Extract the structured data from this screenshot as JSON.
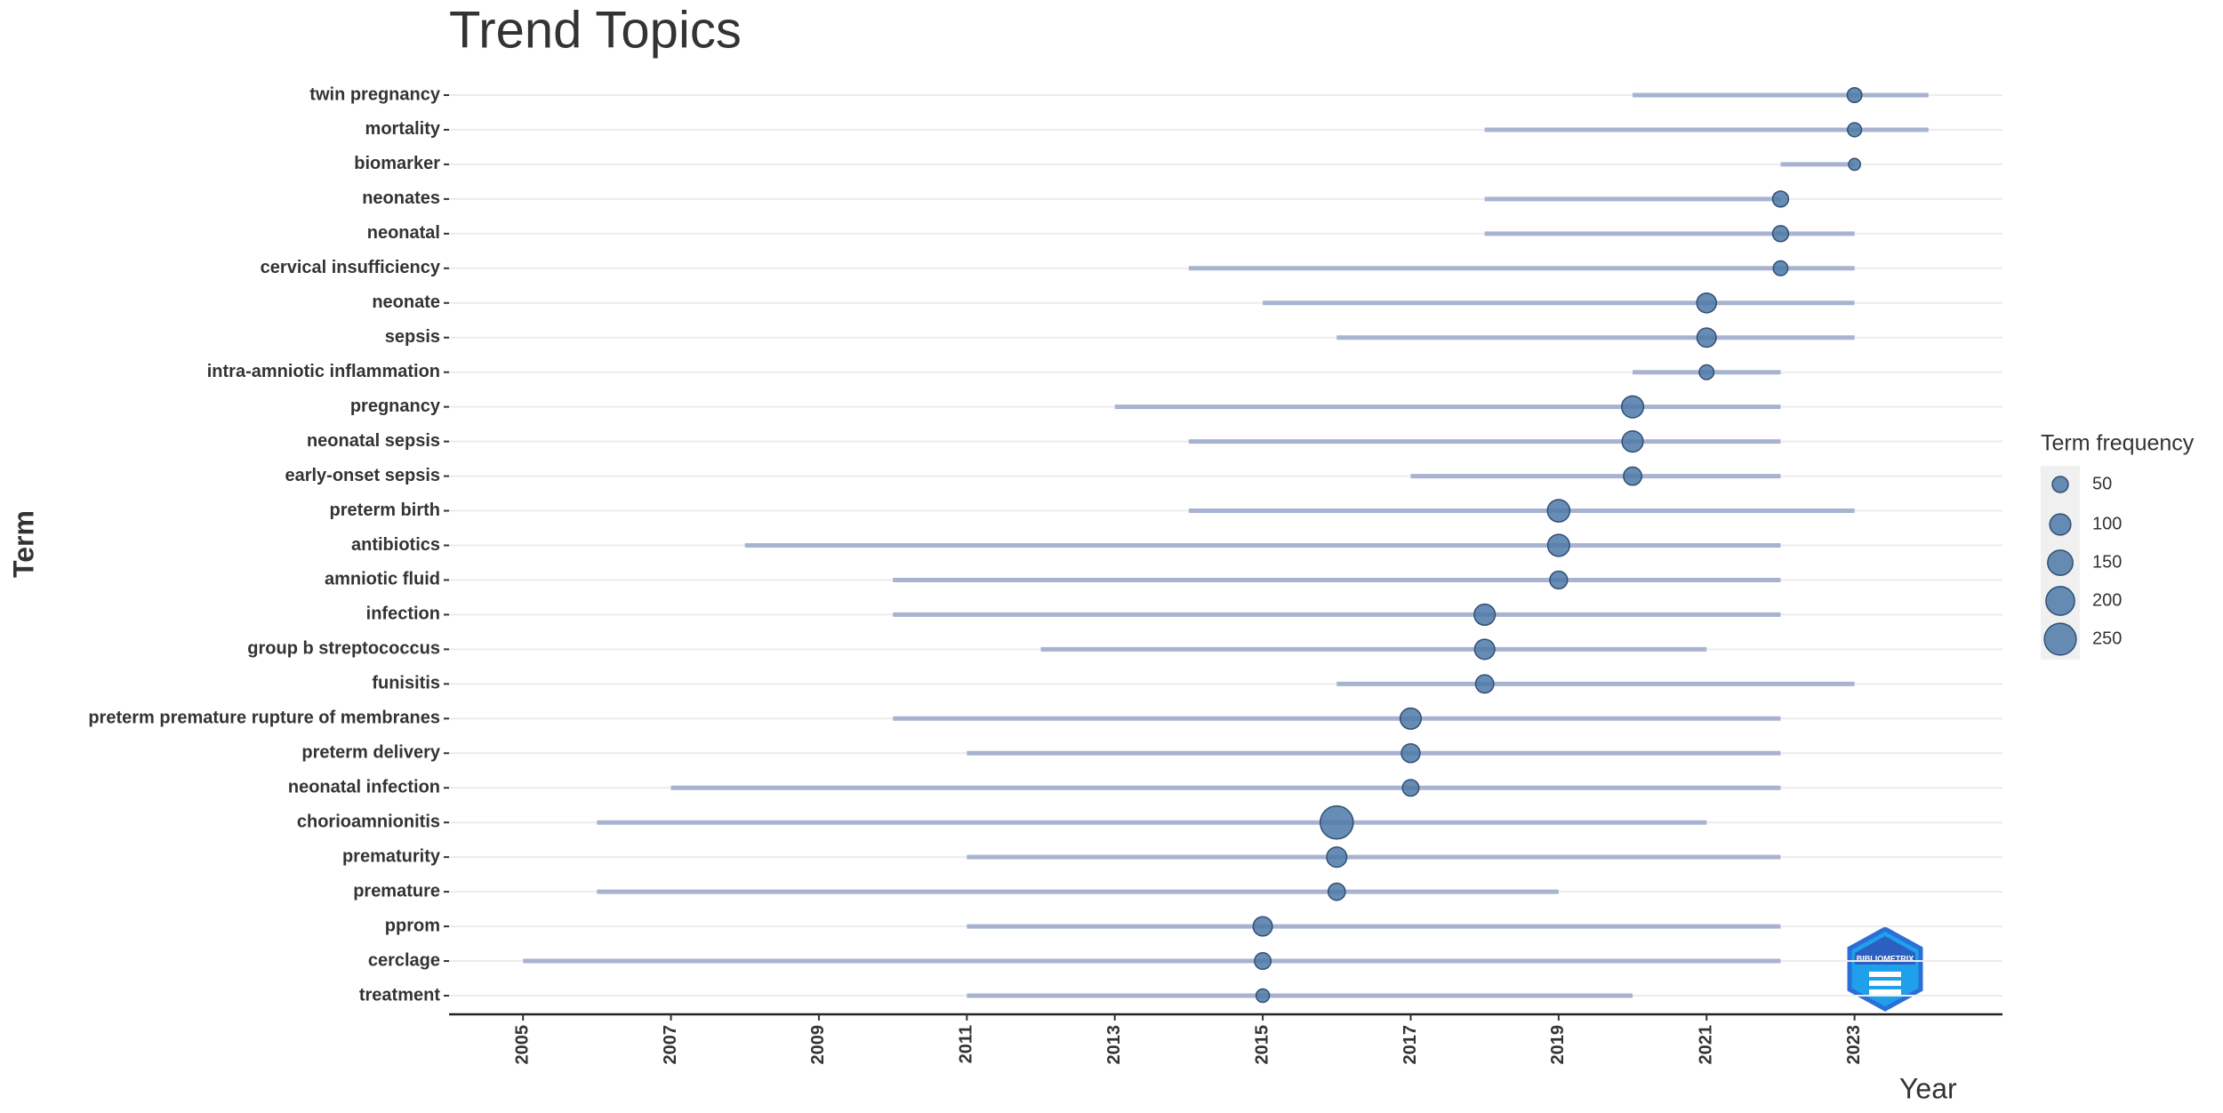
{
  "chart_data": {
    "type": "trend_range",
    "title": "Trend Topics",
    "x_label": "Year",
    "y_label": "Term",
    "legend_title": "Term frequency",
    "legend_sizes": [
      50,
      100,
      150,
      200,
      250
    ],
    "logo": "BIBLIOMETRIX",
    "line_color": "#a8b3d1",
    "dot_color": "#4e79a7",
    "grid": true,
    "xlim": [
      2004,
      2025
    ],
    "xticks": [
      2005,
      2007,
      2009,
      2011,
      2013,
      2015,
      2017,
      2019,
      2021,
      2023
    ],
    "categories": [
      "twin pregnancy",
      "mortality",
      "biomarker",
      "neonates",
      "neonatal",
      "cervical insufficiency",
      "neonate",
      "sepsis",
      "intra-amniotic inflammation",
      "pregnancy",
      "neonatal sepsis",
      "early-onset sepsis",
      "preterm birth",
      "antibiotics",
      "amniotic fluid",
      "infection",
      "group b streptococcus",
      "funisitis",
      "preterm premature rupture of membranes",
      "preterm delivery",
      "neonatal infection",
      "chorioamnionitis",
      "prematurity",
      "premature",
      "pprom",
      "cerclage",
      "treatment"
    ],
    "start": [
      2020,
      2018,
      2022,
      2018,
      2018,
      2014,
      2015,
      2016,
      2020,
      2013,
      2014,
      2017,
      2014,
      2008,
      2010,
      2010,
      2012,
      2016,
      2010,
      2011,
      2007,
      2006,
      2011,
      2006,
      2011,
      2005,
      2011
    ],
    "median": [
      2023,
      2023,
      2023,
      2022,
      2022,
      2022,
      2021,
      2021,
      2021,
      2020,
      2020,
      2020,
      2019,
      2019,
      2019,
      2018,
      2018,
      2018,
      2017,
      2017,
      2017,
      2016,
      2016,
      2016,
      2015,
      2015,
      2015
    ],
    "end": [
      2024,
      2024,
      2023,
      2022,
      2023,
      2023,
      2023,
      2023,
      2022,
      2022,
      2022,
      2022,
      2023,
      2022,
      2022,
      2022,
      2021,
      2023,
      2022,
      2022,
      2022,
      2021,
      2022,
      2019,
      2022,
      2022,
      2020
    ],
    "frequency": [
      40,
      35,
      20,
      50,
      50,
      40,
      85,
      80,
      40,
      110,
      100,
      70,
      115,
      110,
      65,
      100,
      90,
      70,
      100,
      75,
      55,
      270,
      90,
      60,
      80,
      55,
      30
    ]
  }
}
